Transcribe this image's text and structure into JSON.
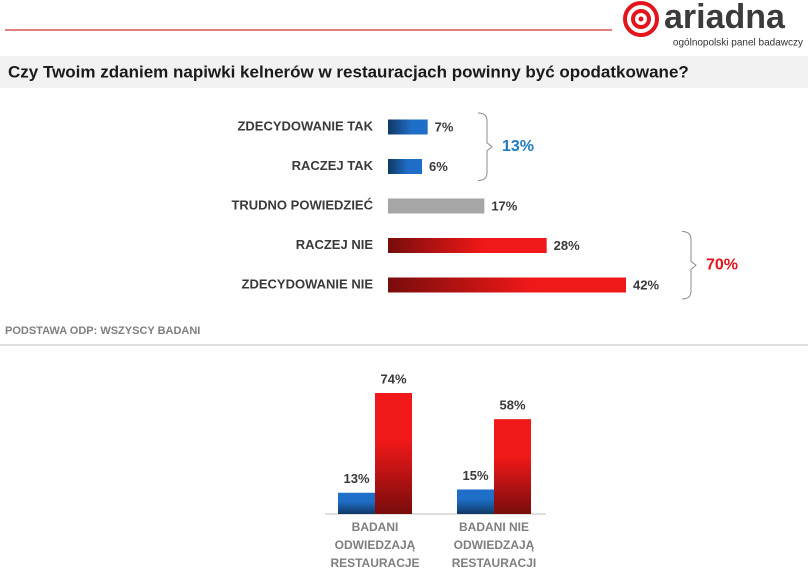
{
  "header": {
    "logo": "ariadna",
    "tagline": "ogólnopolski panel badawczy"
  },
  "note": "PODSTAWA ODP: WSZYSCY BADANI",
  "chart_data": [
    {
      "type": "hbar",
      "title": "Czy Twoim zdaniem napiwki kelnerów w restauracjach powinny być opodatkowane?",
      "categories": [
        "ZDECYDOWANIE TAK",
        "RACZEJ TAK",
        "TRUDNO POWIEDZIEĆ",
        "RACZEJ NIE",
        "ZDECYDOWANIE NIE"
      ],
      "values": [
        7,
        6,
        17,
        28,
        42
      ],
      "value_labels": [
        "7%",
        "6%",
        "17%",
        "28%",
        "42%"
      ],
      "colors": [
        "#1f6fc8",
        "#1f6fc8",
        "#a6a6a6",
        "#f01818",
        "#f01818"
      ],
      "totals": {
        "values": [
          13,
          70
        ],
        "value_labels": [
          "13%",
          "70%"
        ],
        "colors": [
          "#1f7ac0",
          "#e3141b"
        ]
      }
    },
    {
      "type": "grouped-bar",
      "categories": [
        "BADANI ODWIEDZAJĄ RESTAURACJE",
        "BADANI NIE ODWIEDZAJĄ RESTAURACJI"
      ],
      "series": [
        {
          "color": "#1f6fc8",
          "values": [
            13,
            15
          ],
          "value_labels": [
            "13%",
            "15%"
          ]
        },
        {
          "color": "#f01818",
          "values": [
            74,
            58
          ],
          "value_labels": [
            "74%",
            "58%"
          ]
        }
      ]
    }
  ]
}
